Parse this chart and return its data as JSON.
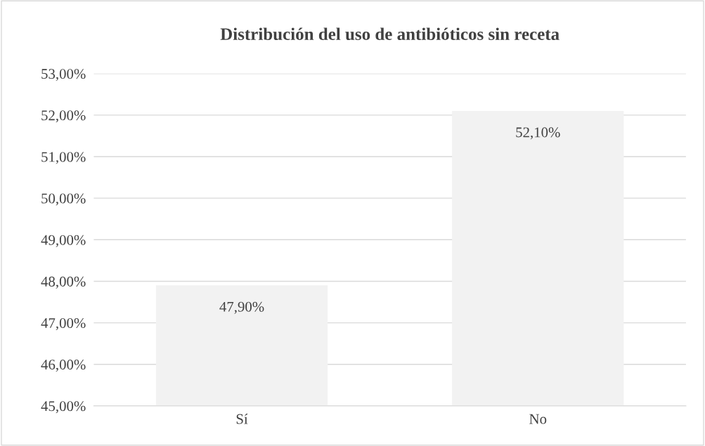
{
  "chart_data": {
    "type": "bar",
    "title": "Distribución del uso de antibióticos sin receta",
    "categories": [
      "Sí",
      "No"
    ],
    "values": [
      47.9,
      52.1
    ],
    "value_labels": [
      "47,90%",
      "52,10%"
    ],
    "color": "#f2f2f2",
    "ylim": [
      45,
      53
    ],
    "yticks": [
      {
        "value": 45,
        "label": "45,00%"
      },
      {
        "value": 46,
        "label": "46,00%"
      },
      {
        "value": 47,
        "label": "47,00%"
      },
      {
        "value": 48,
        "label": "48,00%"
      },
      {
        "value": 49,
        "label": "49,00%"
      },
      {
        "value": 50,
        "label": "50,00%"
      },
      {
        "value": 51,
        "label": "51,00%"
      },
      {
        "value": 52,
        "label": "52,00%"
      },
      {
        "value": 53,
        "label": "53,00%"
      }
    ],
    "grid": "y",
    "legend": false
  }
}
